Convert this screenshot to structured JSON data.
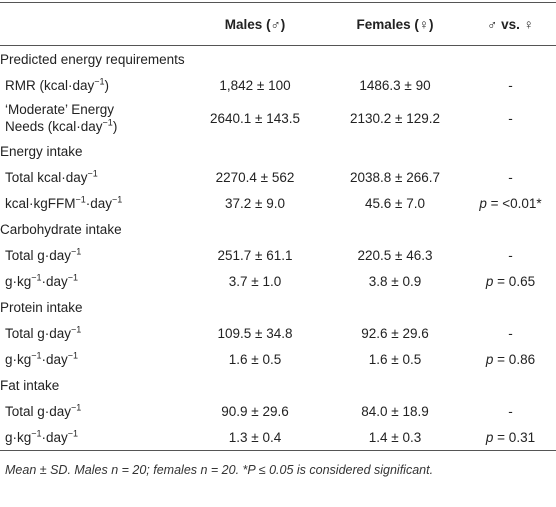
{
  "table": {
    "header": [
      "Males (♂)",
      "Females (♀)",
      "♂ vs. ♀"
    ],
    "sections": [
      {
        "title": "Predicted energy requirements",
        "rows": [
          {
            "label": [
              {
                "text": "RMR (kcal·day"
              },
              {
                "text": "−1",
                "sup": true
              },
              {
                "text": ")"
              }
            ],
            "cells": [
              "1,842 ± 100",
              "1486.3 ± 90",
              [
                {
                  "text": "-"
                }
              ]
            ]
          },
          {
            "label": [
              {
                "text": "‘Moderate’ Energy Needs (kcal·day"
              },
              {
                "text": "−1",
                "sup": true
              },
              {
                "text": ")"
              }
            ],
            "cells": [
              "2640.1 ± 143.5",
              "2130.2 ± 129.2",
              [
                {
                  "text": "-"
                }
              ]
            ]
          }
        ]
      },
      {
        "title": "Energy intake",
        "rows": [
          {
            "label": [
              {
                "text": "Total kcal·day"
              },
              {
                "text": "−1",
                "sup": true
              }
            ],
            "cells": [
              "2270.4 ± 562",
              "2038.8 ± 266.7",
              [
                {
                  "text": "-"
                }
              ]
            ]
          },
          {
            "label": [
              {
                "text": "kcal·kgFFM"
              },
              {
                "text": "−1",
                "sup": true
              },
              {
                "text": "·day"
              },
              {
                "text": "−1",
                "sup": true
              }
            ],
            "cells": [
              "37.2 ± 9.0",
              "45.6 ± 7.0",
              [
                {
                  "text": "p",
                  "italic": true
                },
                {
                  "text": " = <0.01*"
                }
              ]
            ]
          }
        ]
      },
      {
        "title": "Carbohydrate intake",
        "rows": [
          {
            "label": [
              {
                "text": "Total g·day"
              },
              {
                "text": "−1",
                "sup": true
              }
            ],
            "cells": [
              "251.7 ± 61.1",
              "220.5 ± 46.3",
              [
                {
                  "text": "-"
                }
              ]
            ]
          },
          {
            "label": [
              {
                "text": "g·kg"
              },
              {
                "text": "−1",
                "sup": true
              },
              {
                "text": "·day"
              },
              {
                "text": "−1",
                "sup": true
              }
            ],
            "cells": [
              "3.7 ± 1.0",
              "3.8 ± 0.9",
              [
                {
                  "text": "p",
                  "italic": true
                },
                {
                  "text": " = 0.65"
                }
              ]
            ]
          }
        ]
      },
      {
        "title": "Protein intake",
        "rows": [
          {
            "label": [
              {
                "text": "Total g·day"
              },
              {
                "text": "−1",
                "sup": true
              }
            ],
            "cells": [
              "109.5 ± 34.8",
              "92.6 ± 29.6",
              [
                {
                  "text": "-"
                }
              ]
            ]
          },
          {
            "label": [
              {
                "text": "g·kg"
              },
              {
                "text": "−1",
                "sup": true
              },
              {
                "text": "·day"
              },
              {
                "text": "−1",
                "sup": true
              }
            ],
            "cells": [
              "1.6 ± 0.5",
              "1.6 ± 0.5",
              [
                {
                  "text": "p",
                  "italic": true
                },
                {
                  "text": " = 0.86"
                }
              ]
            ]
          }
        ]
      },
      {
        "title": "Fat intake",
        "rows": [
          {
            "label": [
              {
                "text": "Total g·day"
              },
              {
                "text": "−1",
                "sup": true
              }
            ],
            "cells": [
              "90.9 ± 29.6",
              "84.0 ± 18.9",
              [
                {
                  "text": "-"
                }
              ]
            ]
          },
          {
            "label": [
              {
                "text": "g·kg"
              },
              {
                "text": "−1",
                "sup": true
              },
              {
                "text": "·day"
              },
              {
                "text": "−1",
                "sup": true
              }
            ],
            "cells": [
              "1.3 ± 0.4",
              "1.4 ± 0.3",
              [
                {
                  "text": "p",
                  "italic": true
                },
                {
                  "text": " = 0.31"
                }
              ]
            ]
          }
        ]
      }
    ],
    "footnote": "Mean ± SD. Males n = 20; females n = 20. *P ≤ 0.05 is considered significant."
  }
}
